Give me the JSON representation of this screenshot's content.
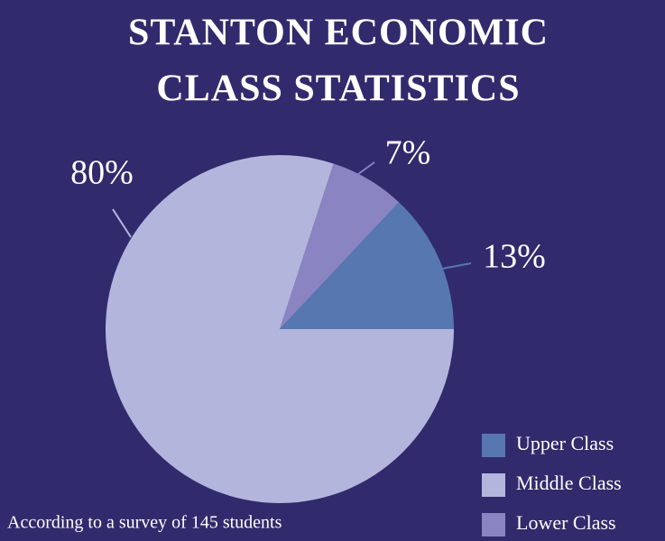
{
  "chart_data": {
    "type": "pie",
    "title_lines": [
      "STANTON ECONOMIC",
      "CLASS STATISTICS"
    ],
    "categories": [
      "Upper Class",
      "Middle Class",
      "Lower Class"
    ],
    "values": [
      13,
      80,
      7
    ],
    "value_labels": [
      "13%",
      "80%",
      "7%"
    ],
    "colors": [
      "#5677b0",
      "#b4b5dc",
      "#8a84c2"
    ],
    "note": "According to a survey of 145 students",
    "legend": "bottom-right"
  }
}
